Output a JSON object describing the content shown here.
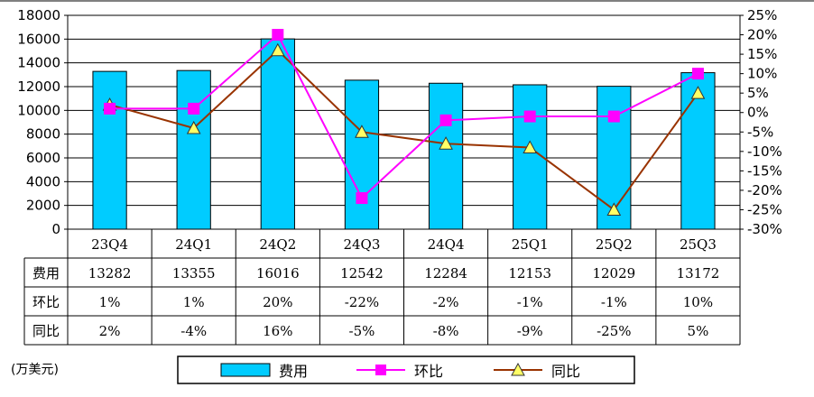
{
  "chart_data": {
    "type": "bar",
    "categories": [
      "23Q4",
      "24Q1",
      "24Q2",
      "24Q3",
      "24Q4",
      "25Q1",
      "25Q2",
      "25Q3"
    ],
    "series": [
      {
        "name": "费用",
        "type": "bar",
        "axis": "left",
        "values": [
          13282,
          13355,
          16016,
          12542,
          12284,
          12153,
          12029,
          13172
        ],
        "color": "#00CCFF"
      },
      {
        "name": "环比",
        "type": "line",
        "axis": "right",
        "values": [
          1,
          1,
          20,
          -22,
          -2,
          -1,
          -1,
          10
        ],
        "color": "#FF00FF"
      },
      {
        "name": "同比",
        "type": "line",
        "axis": "right",
        "values": [
          2,
          -4,
          16,
          -5,
          -8,
          -9,
          -25,
          5
        ],
        "color": "#993300",
        "marker_color": "#FFFF66"
      }
    ],
    "y_left": {
      "min": 0,
      "max": 18000,
      "step": 2000,
      "ticks": [
        "0",
        "2000",
        "4000",
        "6000",
        "8000",
        "10000",
        "12000",
        "14000",
        "16000",
        "18000"
      ]
    },
    "y_right": {
      "min": -30,
      "max": 25,
      "step": 5,
      "ticks": [
        "-30%",
        "-25%",
        "-20%",
        "-15%",
        "-10%",
        "-5%",
        "0%",
        "5%",
        "10%",
        "15%",
        "20%",
        "25%"
      ]
    },
    "table": {
      "rows": [
        {
          "label": "费用",
          "cells": [
            "13282",
            "13355",
            "16016",
            "12542",
            "12284",
            "12153",
            "12029",
            "13172"
          ]
        },
        {
          "label": "环比",
          "cells": [
            "1%",
            "1%",
            "20%",
            "-22%",
            "-2%",
            "-1%",
            "-1%",
            "10%"
          ]
        },
        {
          "label": "同比",
          "cells": [
            "2%",
            "-4%",
            "16%",
            "-5%",
            "-8%",
            "-9%",
            "-25%",
            "5%"
          ]
        }
      ]
    },
    "unit_label": "(万美元)",
    "legend": [
      "费用",
      "环比",
      "同比"
    ],
    "legend_position": "bottom",
    "grid": true
  }
}
